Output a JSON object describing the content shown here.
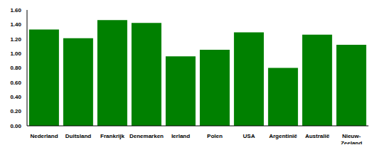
{
  "chart_data": {
    "type": "bar",
    "categories": [
      "Nederland",
      "Duitsland",
      "Frankrijk",
      "Denemarken",
      "Ierland",
      "Polen",
      "USA",
      "Argentinië",
      "Australië",
      "Nieuw-Zeeland"
    ],
    "values": [
      1.33,
      1.21,
      1.46,
      1.42,
      0.96,
      1.05,
      1.29,
      0.8,
      1.26,
      1.12
    ],
    "color": "#008000",
    "ylim": [
      0,
      1.6
    ],
    "yticks": [
      {
        "value": 0,
        "label": "0.00"
      },
      {
        "value": 0.2,
        "label": "0.20"
      },
      {
        "value": 0.4,
        "label": "0.40"
      },
      {
        "value": 0.6,
        "label": "0.60"
      },
      {
        "value": 0.8,
        "label": "0.80"
      },
      {
        "value": 1,
        "label": "1.00"
      },
      {
        "value": 1.2,
        "label": "1.20"
      },
      {
        "value": 1.4,
        "label": "1.40"
      },
      {
        "value": 1.6,
        "label": "1.60"
      }
    ],
    "grid": false
  }
}
